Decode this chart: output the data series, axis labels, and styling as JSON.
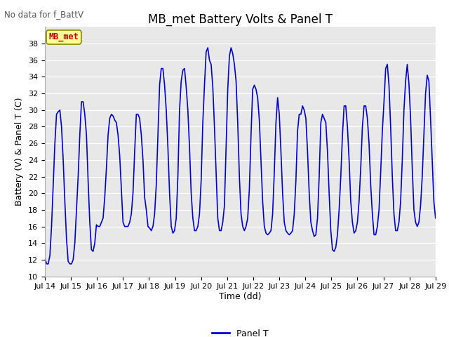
{
  "title": "MB_met Battery Volts & Panel T",
  "no_data_text": "No data for f_BattV",
  "ylabel": "Battery (V) & Panel T (C)",
  "xlabel": "Time (dd)",
  "ylim": [
    10,
    40
  ],
  "yticks": [
    10,
    12,
    14,
    16,
    18,
    20,
    22,
    24,
    26,
    28,
    30,
    32,
    34,
    36,
    38
  ],
  "xtick_labels": [
    "Jul 14",
    "Jul 15",
    "Jul 16",
    "Jul 17",
    "Jul 18",
    "Jul 19",
    "Jul 20",
    "Jul 21",
    "Jul 22",
    "Jul 23",
    "Jul 24",
    "Jul 25",
    "Jul 26",
    "Jul 27",
    "Jul 28",
    "Jul 29"
  ],
  "line_color": "#0000cc",
  "legend_label": "Panel T",
  "legend_line_color": "#0000cc",
  "fig_bg_color": "#ffffff",
  "plot_bg_color": "#e8e8e8",
  "grid_color": "#ffffff",
  "annotation_box_color": "#ffff99",
  "annotation_text_color": "#cc0000",
  "annotation_text": "MB_met",
  "title_fontsize": 12,
  "label_fontsize": 9,
  "tick_fontsize": 8,
  "panel_t_data": [
    12.2,
    11.5,
    11.5,
    12.5,
    16.0,
    21.0,
    26.0,
    29.5,
    29.8,
    30.0,
    28.0,
    24.0,
    19.0,
    14.5,
    11.8,
    11.5,
    11.5,
    12.0,
    14.0,
    18.0,
    22.0,
    27.0,
    31.0,
    31.0,
    29.5,
    27.0,
    21.5,
    16.5,
    13.2,
    13.0,
    14.0,
    16.2,
    16.0,
    16.0,
    16.5,
    17.0,
    19.5,
    23.0,
    27.0,
    29.0,
    29.5,
    29.3,
    28.8,
    28.5,
    27.0,
    24.5,
    20.5,
    16.5,
    16.0,
    16.0,
    16.0,
    16.5,
    17.5,
    20.0,
    25.0,
    29.5,
    29.5,
    29.0,
    27.0,
    24.0,
    19.5,
    18.0,
    16.0,
    15.8,
    15.5,
    16.0,
    17.5,
    21.0,
    27.0,
    33.0,
    35.0,
    35.0,
    33.0,
    30.0,
    25.5,
    20.0,
    16.0,
    15.2,
    15.5,
    17.0,
    22.0,
    30.0,
    33.5,
    34.8,
    35.0,
    32.8,
    30.0,
    25.5,
    20.0,
    17.0,
    15.5,
    15.5,
    16.0,
    17.5,
    21.5,
    28.5,
    33.0,
    37.0,
    37.5,
    36.0,
    35.5,
    32.8,
    28.0,
    22.5,
    17.0,
    15.5,
    15.5,
    16.5,
    18.5,
    25.5,
    32.5,
    36.5,
    37.5,
    36.8,
    35.5,
    33.5,
    28.5,
    22.0,
    17.5,
    16.0,
    15.5,
    16.0,
    17.0,
    20.5,
    27.0,
    32.5,
    33.0,
    32.5,
    31.5,
    28.8,
    24.0,
    19.0,
    16.0,
    15.2,
    15.0,
    15.2,
    15.5,
    17.5,
    22.5,
    28.5,
    31.5,
    29.5,
    25.0,
    20.0,
    16.5,
    15.5,
    15.2,
    15.0,
    15.2,
    15.5,
    17.5,
    21.5,
    27.5,
    29.5,
    29.5,
    30.5,
    30.0,
    29.0,
    25.0,
    20.0,
    16.5,
    15.5,
    14.8,
    15.0,
    17.0,
    22.0,
    28.5,
    29.5,
    29.0,
    28.5,
    25.0,
    20.0,
    15.5,
    13.2,
    13.0,
    13.5,
    15.0,
    18.0,
    22.0,
    27.0,
    30.5,
    30.5,
    28.0,
    24.0,
    19.0,
    16.5,
    15.2,
    15.5,
    16.5,
    19.0,
    23.0,
    28.0,
    30.5,
    30.5,
    29.0,
    26.0,
    21.0,
    17.5,
    15.0,
    15.0,
    16.0,
    18.0,
    22.5,
    27.5,
    31.0,
    35.0,
    35.5,
    33.0,
    28.0,
    22.0,
    17.5,
    15.5,
    15.5,
    16.5,
    19.0,
    24.0,
    30.0,
    33.5,
    35.5,
    33.2,
    29.0,
    23.0,
    18.0,
    16.5,
    16.0,
    16.5,
    18.5,
    22.0,
    27.0,
    32.0,
    34.2,
    33.5,
    29.0,
    24.0,
    19.0,
    17.0
  ]
}
